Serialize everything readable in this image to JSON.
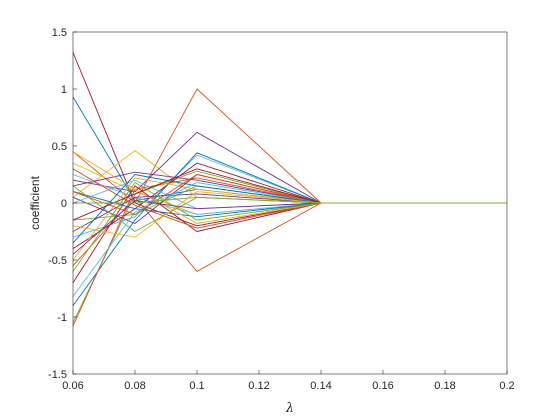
{
  "chart_data": {
    "type": "line",
    "title": "",
    "xlabel": "λ",
    "ylabel": "coefficient",
    "xlim": [
      0.06,
      0.2
    ],
    "ylim": [
      -1.5,
      1.5
    ],
    "xticks": [
      "0.06",
      "0.08",
      "0.1",
      "0.12",
      "0.14",
      "0.16",
      "0.18",
      "0.2"
    ],
    "yticks": [
      "-1.5",
      "-1",
      "-0.5",
      "0",
      "0.5",
      "1",
      "1.5"
    ],
    "grid": false,
    "legend": "none",
    "x": [
      0.06,
      0.08,
      0.1,
      0.14,
      0.2
    ],
    "series": [
      {
        "color": "#A2142F",
        "values": [
          1.32,
          0.0,
          -0.2,
          0,
          0
        ]
      },
      {
        "color": "#0072BD",
        "values": [
          0.93,
          0.02,
          0.12,
          0,
          0
        ]
      },
      {
        "color": "#D95319",
        "values": [
          0.45,
          0.0,
          1.0,
          0,
          0
        ]
      },
      {
        "color": "#D95319",
        "values": [
          -0.55,
          0.05,
          -0.6,
          0,
          0
        ]
      },
      {
        "color": "#EDB120",
        "values": [
          0.35,
          0.1,
          -0.1,
          0,
          0
        ]
      },
      {
        "color": "#EDB120",
        "values": [
          0.05,
          0.46,
          0.05,
          0,
          0
        ]
      },
      {
        "color": "#7E2F8E",
        "values": [
          0.2,
          0.1,
          0.62,
          0,
          0
        ]
      },
      {
        "color": "#7E2F8E",
        "values": [
          0.15,
          0.27,
          0.2,
          0,
          0
        ]
      },
      {
        "color": "#77AC30",
        "values": [
          -1.05,
          0.08,
          0.28,
          0,
          0
        ]
      },
      {
        "color": "#77AC30",
        "values": [
          -0.15,
          -0.1,
          0.15,
          0,
          0
        ]
      },
      {
        "color": "#4DBEEE",
        "values": [
          -0.3,
          -0.12,
          0.42,
          0,
          0
        ]
      },
      {
        "color": "#4DBEEE",
        "values": [
          0.25,
          0.05,
          -0.1,
          0,
          0
        ]
      },
      {
        "color": "#A2142F",
        "values": [
          -0.4,
          -0.05,
          0.35,
          0,
          0
        ]
      },
      {
        "color": "#A2142F",
        "values": [
          -0.7,
          0.15,
          -0.25,
          0,
          0
        ]
      },
      {
        "color": "#0072BD",
        "values": [
          -0.9,
          -0.15,
          0.44,
          0,
          0
        ]
      },
      {
        "color": "#0072BD",
        "values": [
          0.1,
          -0.05,
          -0.12,
          0,
          0
        ]
      },
      {
        "color": "#D95319",
        "values": [
          -1.08,
          0.12,
          0.22,
          0,
          0
        ]
      },
      {
        "color": "#D95319",
        "values": [
          0.3,
          -0.02,
          -0.22,
          0,
          0
        ]
      },
      {
        "color": "#EDB120",
        "values": [
          -0.5,
          0.22,
          0.12,
          0,
          0
        ]
      },
      {
        "color": "#EDB120",
        "values": [
          0.45,
          0.12,
          -0.18,
          0,
          0
        ]
      },
      {
        "color": "#7E2F8E",
        "values": [
          -0.25,
          0.05,
          0.08,
          0,
          0
        ]
      },
      {
        "color": "#7E2F8E",
        "values": [
          0.05,
          -0.18,
          0.25,
          0,
          0
        ]
      },
      {
        "color": "#77AC30",
        "values": [
          0.15,
          -0.25,
          0.05,
          0,
          0
        ]
      },
      {
        "color": "#77AC30",
        "values": [
          -0.6,
          0.18,
          -0.15,
          0,
          0
        ]
      },
      {
        "color": "#4DBEEE",
        "values": [
          -0.82,
          -0.08,
          0.18,
          0,
          0
        ]
      },
      {
        "color": "#4DBEEE",
        "values": [
          0.0,
          0.2,
          -0.05,
          0,
          0
        ]
      },
      {
        "color": "#0072BD",
        "values": [
          -0.35,
          0.25,
          0.15,
          0,
          0
        ]
      },
      {
        "color": "#D95319",
        "values": [
          0.1,
          -0.1,
          0.25,
          0,
          0
        ]
      },
      {
        "color": "#A2142F",
        "values": [
          -0.15,
          0.08,
          0.3,
          0,
          0
        ]
      },
      {
        "color": "#EDB120",
        "values": [
          -0.2,
          -0.3,
          0.1,
          0,
          0
        ]
      },
      {
        "color": "#7E2F8E",
        "values": [
          -0.45,
          0.02,
          -0.05,
          0,
          0
        ]
      },
      {
        "color": "#77AC30",
        "values": [
          0.0,
          0.0,
          0.05,
          0,
          0
        ]
      }
    ]
  }
}
